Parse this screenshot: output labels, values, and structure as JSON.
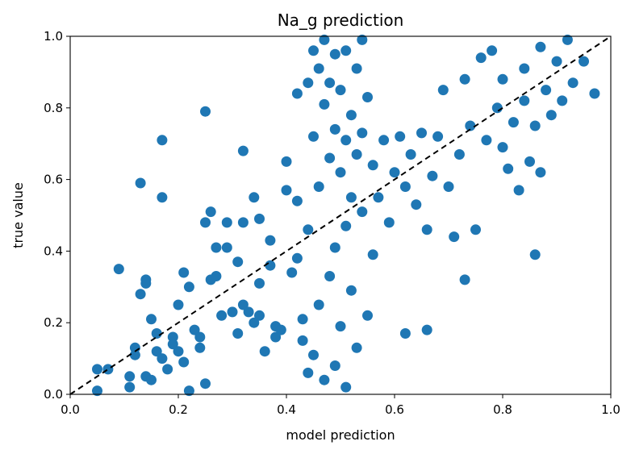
{
  "chart_data": {
    "type": "scatter",
    "title": "Na_g prediction",
    "xlabel": "model prediction",
    "ylabel": "true value",
    "xlim": [
      0.0,
      1.0
    ],
    "ylim": [
      0.0,
      1.0
    ],
    "x_ticks": [
      "0.0",
      "0.2",
      "0.4",
      "0.6",
      "0.8",
      "1.0"
    ],
    "y_ticks": [
      "0.0",
      "0.2",
      "0.4",
      "0.6",
      "0.8",
      "1.0"
    ],
    "grid": false,
    "legend": "none",
    "reference_line": {
      "name": "y = x",
      "style": "dashed",
      "color": "#000000",
      "from": [
        0.0,
        0.0
      ],
      "to": [
        1.0,
        1.0
      ]
    },
    "series": [
      {
        "name": "predictions",
        "color": "#1f77b4",
        "points": [
          [
            0.05,
            0.01
          ],
          [
            0.05,
            0.07
          ],
          [
            0.07,
            0.07
          ],
          [
            0.09,
            0.35
          ],
          [
            0.11,
            0.02
          ],
          [
            0.11,
            0.05
          ],
          [
            0.12,
            0.11
          ],
          [
            0.12,
            0.13
          ],
          [
            0.13,
            0.28
          ],
          [
            0.13,
            0.59
          ],
          [
            0.14,
            0.32
          ],
          [
            0.14,
            0.31
          ],
          [
            0.14,
            0.05
          ],
          [
            0.15,
            0.04
          ],
          [
            0.15,
            0.21
          ],
          [
            0.16,
            0.17
          ],
          [
            0.16,
            0.12
          ],
          [
            0.17,
            0.55
          ],
          [
            0.17,
            0.71
          ],
          [
            0.17,
            0.1
          ],
          [
            0.18,
            0.07
          ],
          [
            0.19,
            0.16
          ],
          [
            0.19,
            0.14
          ],
          [
            0.2,
            0.25
          ],
          [
            0.2,
            0.12
          ],
          [
            0.21,
            0.09
          ],
          [
            0.21,
            0.34
          ],
          [
            0.22,
            0.01
          ],
          [
            0.22,
            0.3
          ],
          [
            0.23,
            0.18
          ],
          [
            0.24,
            0.13
          ],
          [
            0.24,
            0.16
          ],
          [
            0.25,
            0.79
          ],
          [
            0.25,
            0.48
          ],
          [
            0.25,
            0.03
          ],
          [
            0.26,
            0.51
          ],
          [
            0.26,
            0.32
          ],
          [
            0.27,
            0.33
          ],
          [
            0.27,
            0.41
          ],
          [
            0.28,
            0.22
          ],
          [
            0.29,
            0.48
          ],
          [
            0.29,
            0.41
          ],
          [
            0.3,
            0.23
          ],
          [
            0.31,
            0.17
          ],
          [
            0.31,
            0.37
          ],
          [
            0.32,
            0.68
          ],
          [
            0.32,
            0.48
          ],
          [
            0.32,
            0.25
          ],
          [
            0.33,
            0.23
          ],
          [
            0.34,
            0.2
          ],
          [
            0.34,
            0.55
          ],
          [
            0.35,
            0.49
          ],
          [
            0.35,
            0.31
          ],
          [
            0.35,
            0.22
          ],
          [
            0.36,
            0.12
          ],
          [
            0.37,
            0.36
          ],
          [
            0.37,
            0.43
          ],
          [
            0.38,
            0.16
          ],
          [
            0.38,
            0.19
          ],
          [
            0.39,
            0.18
          ],
          [
            0.4,
            0.65
          ],
          [
            0.4,
            0.57
          ],
          [
            0.41,
            0.34
          ],
          [
            0.42,
            0.84
          ],
          [
            0.42,
            0.54
          ],
          [
            0.42,
            0.38
          ],
          [
            0.43,
            0.21
          ],
          [
            0.43,
            0.15
          ],
          [
            0.44,
            0.46
          ],
          [
            0.44,
            0.87
          ],
          [
            0.44,
            0.06
          ],
          [
            0.45,
            0.96
          ],
          [
            0.45,
            0.72
          ],
          [
            0.45,
            0.11
          ],
          [
            0.46,
            0.91
          ],
          [
            0.46,
            0.58
          ],
          [
            0.46,
            0.25
          ],
          [
            0.47,
            0.99
          ],
          [
            0.47,
            0.81
          ],
          [
            0.47,
            0.04
          ],
          [
            0.48,
            0.87
          ],
          [
            0.48,
            0.66
          ],
          [
            0.48,
            0.33
          ],
          [
            0.49,
            0.95
          ],
          [
            0.49,
            0.74
          ],
          [
            0.49,
            0.41
          ],
          [
            0.49,
            0.08
          ],
          [
            0.5,
            0.85
          ],
          [
            0.5,
            0.62
          ],
          [
            0.5,
            0.19
          ],
          [
            0.51,
            0.96
          ],
          [
            0.51,
            0.71
          ],
          [
            0.51,
            0.47
          ],
          [
            0.51,
            0.02
          ],
          [
            0.52,
            0.78
          ],
          [
            0.52,
            0.55
          ],
          [
            0.52,
            0.29
          ],
          [
            0.53,
            0.91
          ],
          [
            0.53,
            0.67
          ],
          [
            0.53,
            0.13
          ],
          [
            0.54,
            0.99
          ],
          [
            0.54,
            0.73
          ],
          [
            0.54,
            0.51
          ],
          [
            0.55,
            0.83
          ],
          [
            0.55,
            0.22
          ],
          [
            0.56,
            0.64
          ],
          [
            0.56,
            0.39
          ],
          [
            0.57,
            0.55
          ],
          [
            0.58,
            0.71
          ],
          [
            0.59,
            0.48
          ],
          [
            0.6,
            0.62
          ],
          [
            0.61,
            0.72
          ],
          [
            0.62,
            0.17
          ],
          [
            0.62,
            0.58
          ],
          [
            0.63,
            0.67
          ],
          [
            0.64,
            0.53
          ],
          [
            0.65,
            0.73
          ],
          [
            0.66,
            0.18
          ],
          [
            0.66,
            0.46
          ],
          [
            0.67,
            0.61
          ],
          [
            0.68,
            0.72
          ],
          [
            0.69,
            0.85
          ],
          [
            0.7,
            0.58
          ],
          [
            0.71,
            0.44
          ],
          [
            0.72,
            0.67
          ],
          [
            0.73,
            0.32
          ],
          [
            0.73,
            0.88
          ],
          [
            0.74,
            0.75
          ],
          [
            0.75,
            0.46
          ],
          [
            0.76,
            0.94
          ],
          [
            0.77,
            0.71
          ],
          [
            0.78,
            0.96
          ],
          [
            0.79,
            0.8
          ],
          [
            0.8,
            0.88
          ],
          [
            0.8,
            0.69
          ],
          [
            0.81,
            0.63
          ],
          [
            0.82,
            0.76
          ],
          [
            0.83,
            0.57
          ],
          [
            0.84,
            0.91
          ],
          [
            0.84,
            0.82
          ],
          [
            0.85,
            0.65
          ],
          [
            0.86,
            0.39
          ],
          [
            0.86,
            0.75
          ],
          [
            0.87,
            0.97
          ],
          [
            0.87,
            0.62
          ],
          [
            0.88,
            0.85
          ],
          [
            0.89,
            0.78
          ],
          [
            0.9,
            0.93
          ],
          [
            0.91,
            0.82
          ],
          [
            0.92,
            0.99
          ],
          [
            0.93,
            0.87
          ],
          [
            0.95,
            0.93
          ],
          [
            0.97,
            0.84
          ]
        ]
      }
    ]
  }
}
